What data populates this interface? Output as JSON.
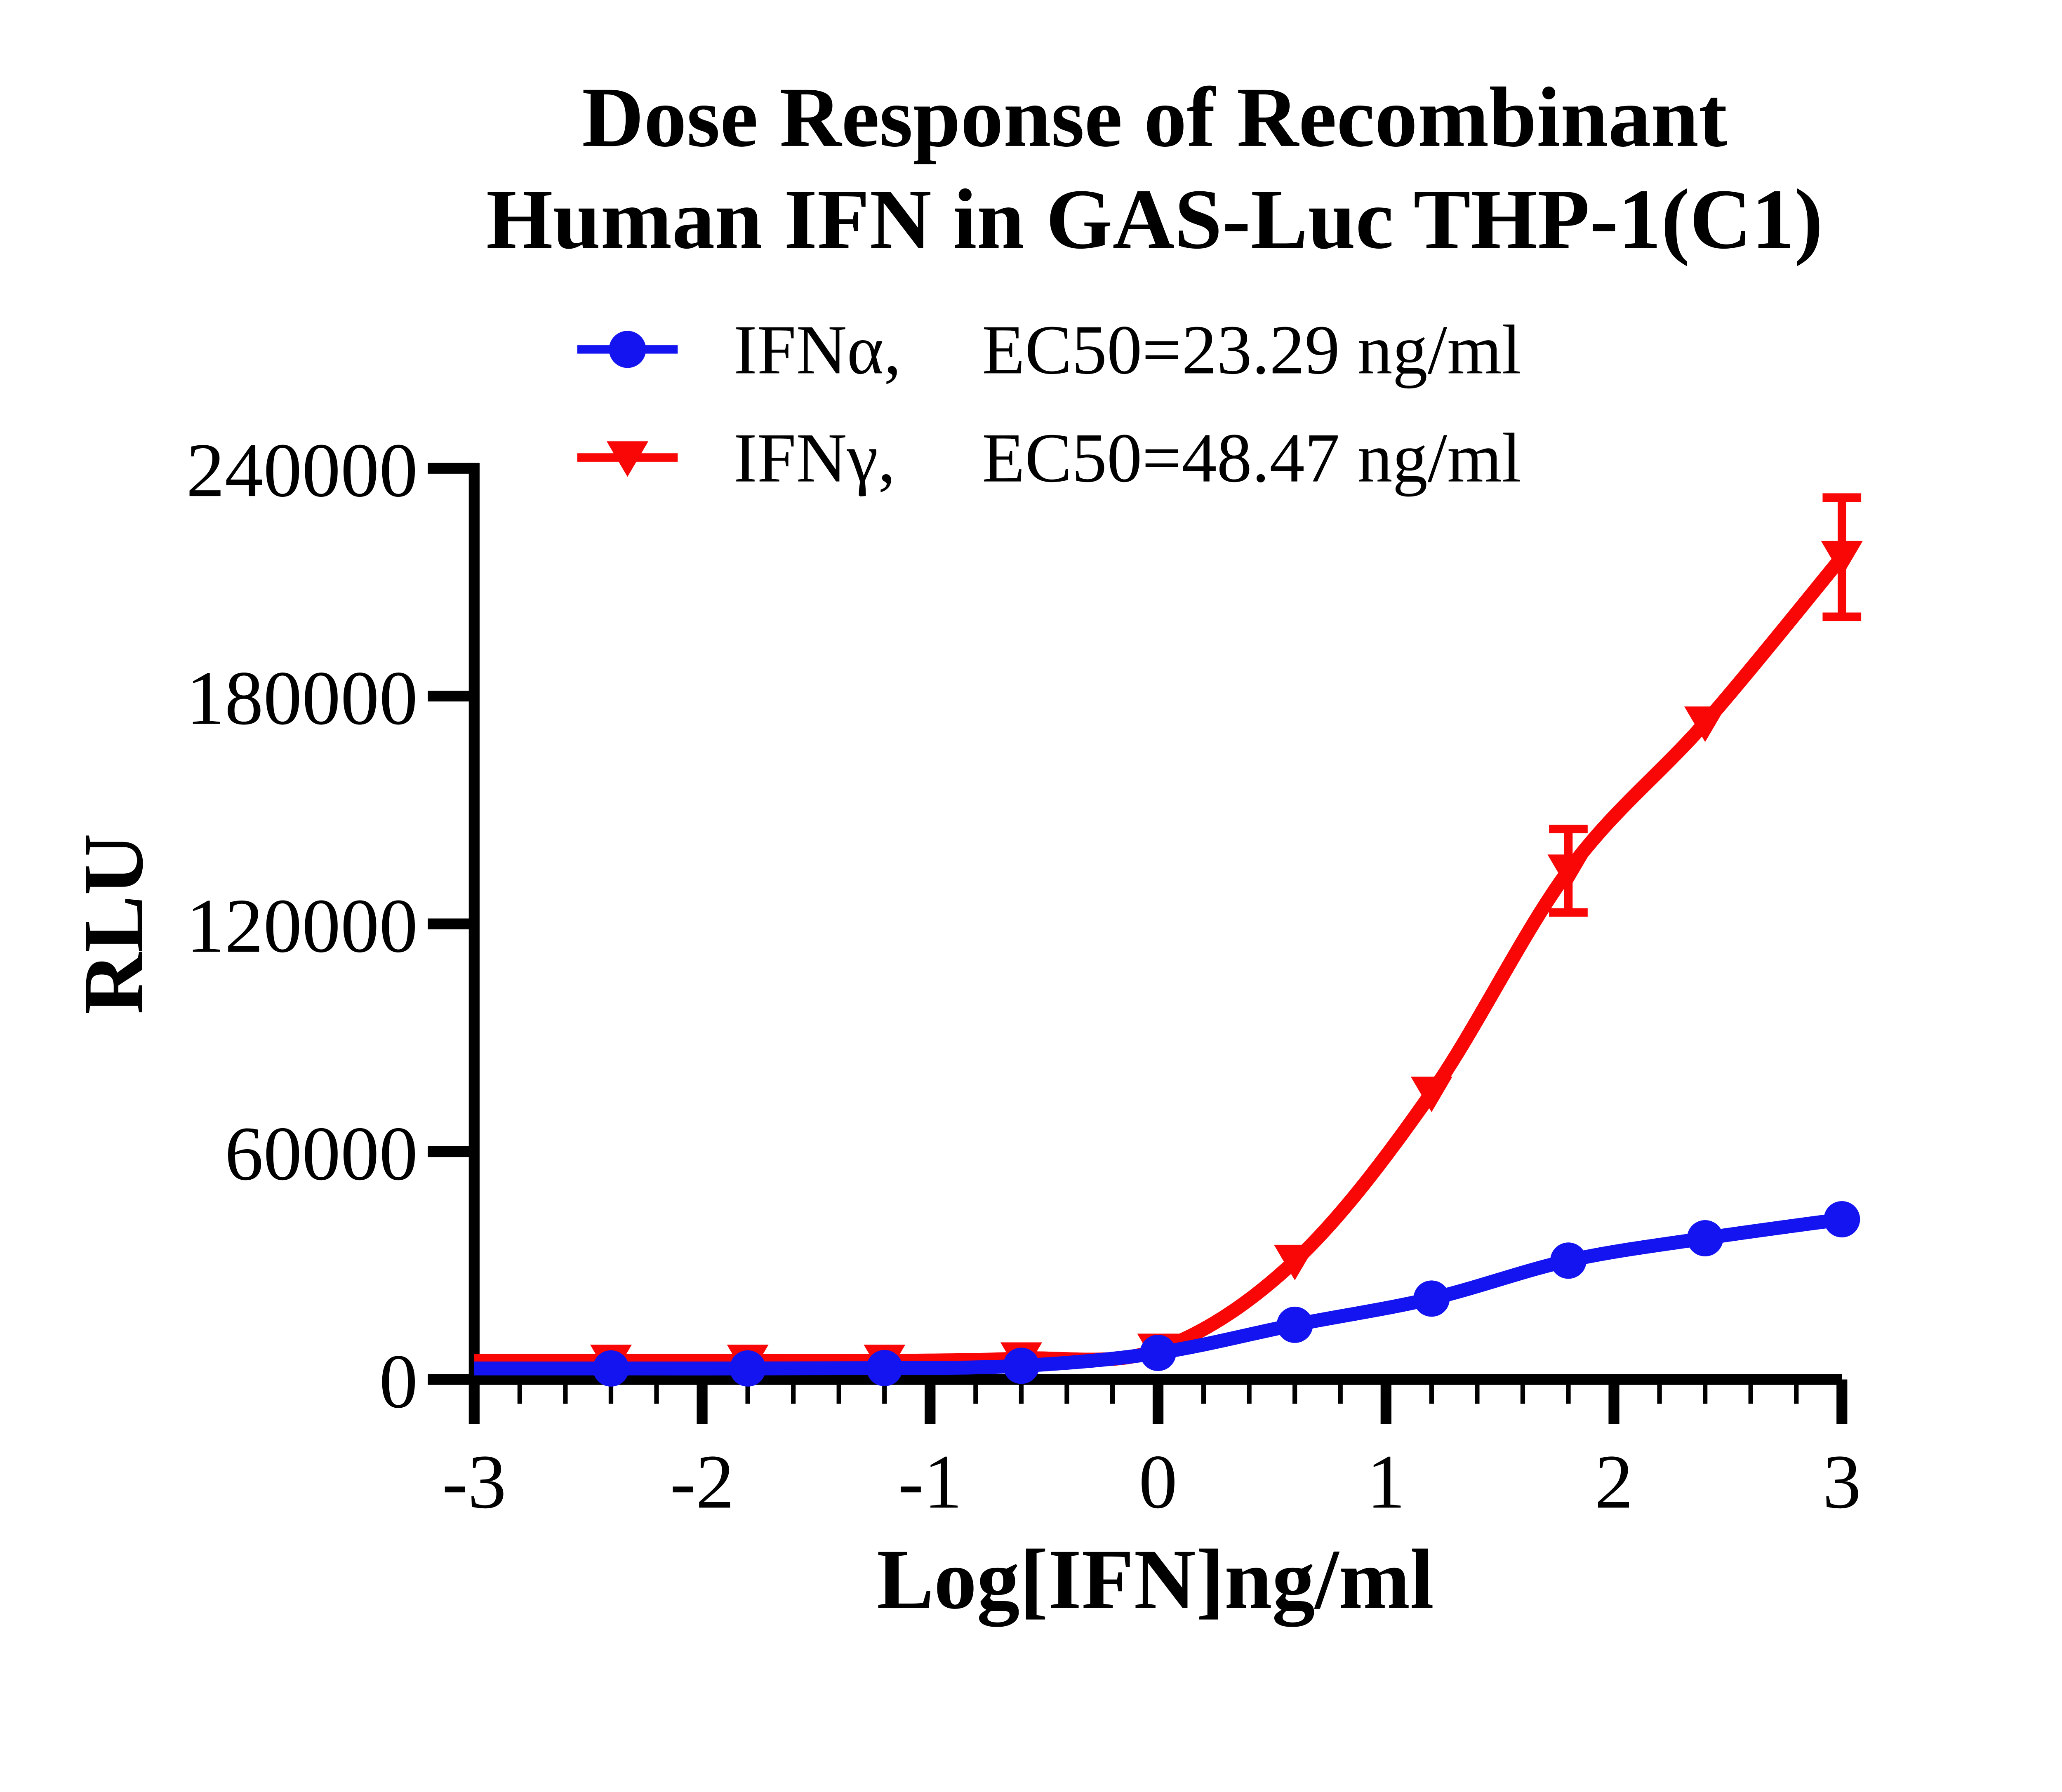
{
  "title": {
    "line1": "Dose Response of Recombinant",
    "line2": "Human IFN in GAS-Luc THP-1(C1)"
  },
  "chart_data": {
    "type": "line",
    "title": "Dose Response of Recombinant Human IFN in GAS-Luc THP-1(C1)",
    "xlabel": "Log[IFN]ng/ml",
    "ylabel": "RLU",
    "xlim": [
      -3,
      3
    ],
    "ylim": [
      0,
      240000
    ],
    "x_ticks": [
      -3,
      -2,
      -1,
      0,
      1,
      2,
      3
    ],
    "y_ticks": [
      0,
      60000,
      120000,
      180000,
      240000
    ],
    "grid": false,
    "legend_position": "top",
    "x": [
      -2.4,
      -1.8,
      -1.2,
      -0.6,
      0,
      0.6,
      1.2,
      1.8,
      2.4,
      3
    ],
    "series": [
      {
        "name": "IFNα",
        "legend_label": "IFNα,",
        "ec50_label": "EC50=23.29 ng/ml",
        "ec50_ng_ml": 23.29,
        "color": "#1414F0",
        "marker": "circle",
        "values": [
          2900,
          2900,
          3000,
          3600,
          7000,
          14400,
          21300,
          31300,
          37200,
          42200
        ],
        "errors": [
          null,
          null,
          null,
          null,
          null,
          null,
          null,
          null,
          null,
          null
        ]
      },
      {
        "name": "IFNγ",
        "legend_label": "IFNγ,",
        "ec50_label": "EC50=48.47 ng/ml",
        "ec50_ng_ml": 48.47,
        "color": "#F90606",
        "marker": "triangle-down",
        "values": [
          4900,
          4900,
          4900,
          5500,
          7800,
          31200,
          75500,
          134000,
          173000,
          216600
        ],
        "errors": [
          null,
          null,
          null,
          null,
          null,
          null,
          null,
          11000,
          null,
          15700
        ]
      }
    ]
  }
}
